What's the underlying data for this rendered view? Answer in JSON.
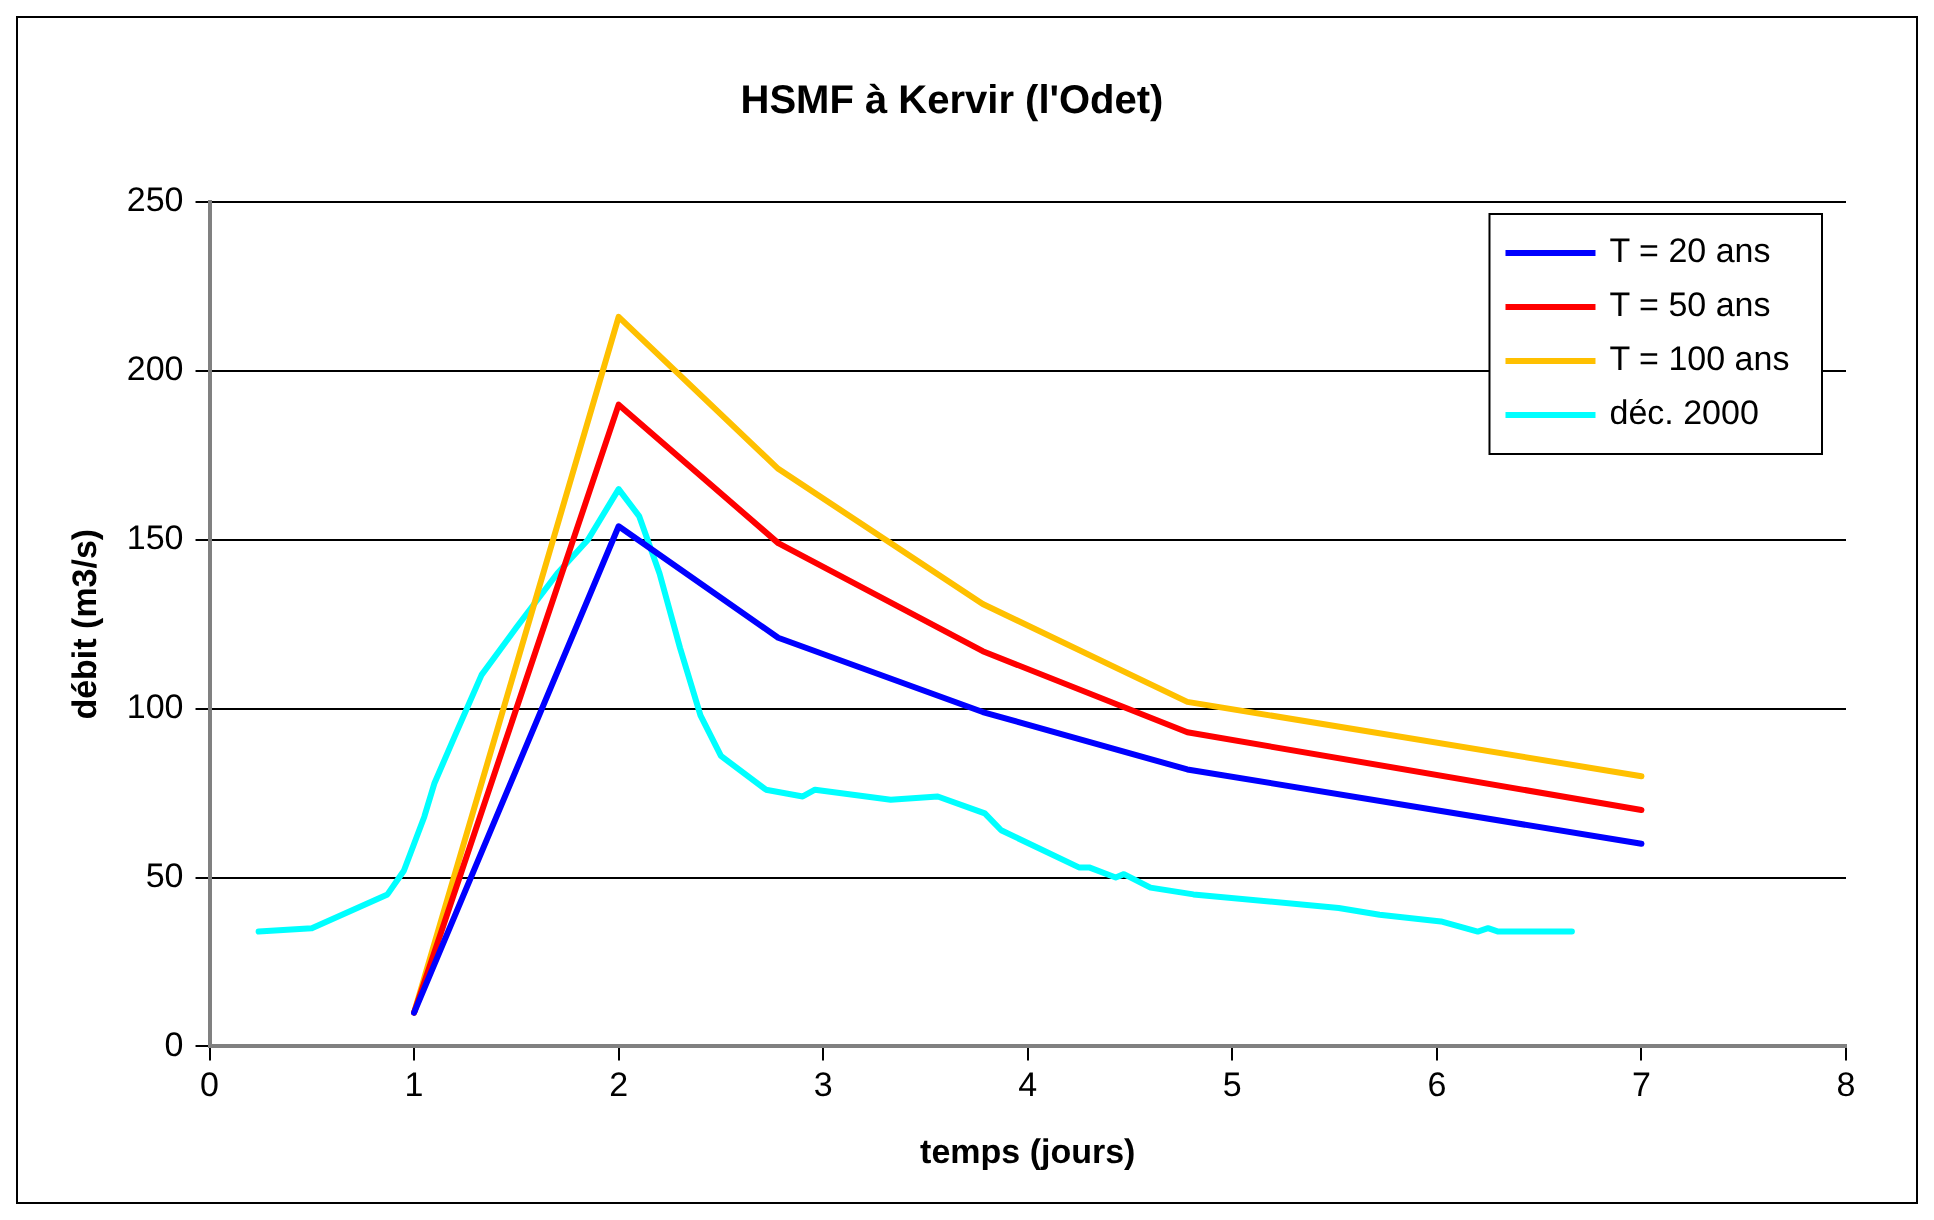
{
  "chart_data": {
    "type": "line",
    "title": "HSMF à Kervir (l'Odet)",
    "xlabel": "temps (jours)",
    "ylabel": "débit (m3/s)",
    "xlim": [
      0,
      8
    ],
    "xticks": [
      0,
      1,
      2,
      3,
      4,
      5,
      6,
      7,
      8
    ],
    "ylim": [
      0,
      250
    ],
    "yticks": [
      0,
      50,
      100,
      150,
      200,
      250
    ],
    "grid": "y",
    "legend": "top right",
    "marker": "none",
    "line_style": "solid",
    "series": [
      {
        "name": "T = 20 ans",
        "color": "#0000ff",
        "x": [
          1,
          2,
          2.78,
          3.78,
          4.78,
          7
        ],
        "values": [
          10,
          154,
          121,
          99,
          82,
          60
        ]
      },
      {
        "name": "T = 50 ans",
        "color": "#ff0000",
        "x": [
          1,
          2,
          2.78,
          3.78,
          4.78,
          7
        ],
        "values": [
          10,
          190,
          149,
          117,
          93,
          70
        ]
      },
      {
        "name": "T = 100 ans",
        "color": "#ffc000",
        "x": [
          1,
          2,
          2.78,
          3.78,
          4.78,
          7
        ],
        "values": [
          10,
          216,
          171,
          131,
          102,
          80
        ]
      },
      {
        "name": "déc. 2000",
        "color": "#00ffff",
        "x": [
          0.24,
          0.5,
          0.87,
          0.95,
          1.0,
          1.05,
          1.1,
          1.2,
          1.33,
          1.5,
          1.7,
          1.85,
          2.0,
          2.1,
          2.2,
          2.3,
          2.4,
          2.5,
          2.72,
          2.9,
          2.96,
          3.33,
          3.56,
          3.79,
          3.87,
          4.25,
          4.3,
          4.43,
          4.47,
          4.6,
          4.81,
          5.52,
          5.72,
          6.02,
          6.2,
          6.25,
          6.3,
          6.66
        ],
        "values": [
          34,
          35,
          45,
          52,
          60,
          68,
          78,
          92,
          110,
          124,
          140,
          150,
          165,
          157,
          140,
          118,
          98,
          86,
          76,
          74,
          76,
          73,
          74,
          69,
          64,
          53,
          53,
          50,
          51,
          47,
          45,
          41,
          39,
          37,
          34,
          35,
          34,
          34
        ]
      }
    ]
  }
}
